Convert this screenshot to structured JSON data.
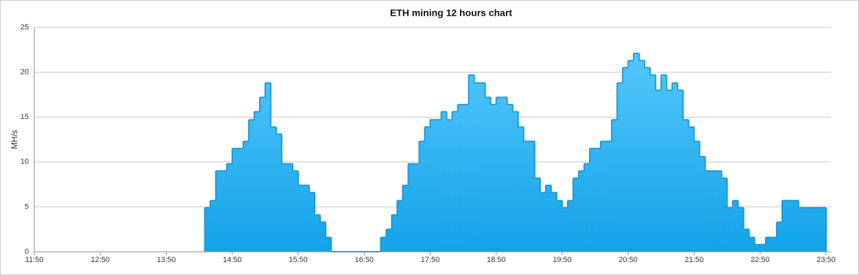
{
  "chart_data": {
    "type": "step-area",
    "title": "ETH mining 12 hours chart",
    "y_label": "MH/s",
    "color": "#1e9ad6",
    "fill_top": "#5ccbff",
    "fill_bottom": "#12a3e8",
    "grid": true,
    "xlim": [
      "11:50",
      "23:50"
    ],
    "xticks": [
      "11:50",
      "12:50",
      "13:50",
      "14:50",
      "15:50",
      "16:50",
      "17:50",
      "18:50",
      "19:50",
      "20:50",
      "21:50",
      "22:50",
      "23:50"
    ],
    "ylim": [
      0,
      25
    ],
    "yticks": [
      0,
      5,
      10,
      15,
      20,
      25
    ],
    "x": [
      "14:25",
      "14:30",
      "14:35",
      "14:40",
      "14:45",
      "14:50",
      "14:55",
      "15:00",
      "15:05",
      "15:10",
      "15:15",
      "15:20",
      "15:25",
      "15:30",
      "15:35",
      "15:40",
      "15:45",
      "15:50",
      "15:55",
      "16:00",
      "16:05",
      "16:10",
      "16:15",
      "16:20",
      "16:25",
      "16:30",
      "16:35",
      "16:40",
      "16:45",
      "16:50",
      "16:55",
      "17:00",
      "17:05",
      "17:10",
      "17:15",
      "17:20",
      "17:25",
      "17:30",
      "17:35",
      "17:40",
      "17:45",
      "17:50",
      "17:55",
      "18:00",
      "18:05",
      "18:10",
      "18:15",
      "18:20",
      "18:25",
      "18:30",
      "18:35",
      "18:40",
      "18:45",
      "18:50",
      "18:55",
      "19:00",
      "19:05",
      "19:10",
      "19:15",
      "19:20",
      "19:25",
      "19:30",
      "19:35",
      "19:40",
      "19:45",
      "19:50",
      "19:55",
      "20:00",
      "20:05",
      "20:10",
      "20:15",
      "20:20",
      "20:25",
      "20:30",
      "20:35",
      "20:40",
      "20:45",
      "20:50",
      "20:55",
      "21:00",
      "21:05",
      "21:10",
      "21:15",
      "21:20",
      "21:25",
      "21:30",
      "21:35",
      "21:40",
      "21:45",
      "21:50",
      "21:55",
      "22:00",
      "22:05",
      "22:10",
      "22:15",
      "22:20",
      "22:25",
      "22:30",
      "22:35",
      "22:40",
      "22:45",
      "22:50",
      "22:55",
      "23:00",
      "23:05",
      "23:10",
      "23:15",
      "23:20",
      "23:25",
      "23:30",
      "23:35",
      "23:40",
      "23:45"
    ],
    "values": [
      4.9,
      5.7,
      9.0,
      9.0,
      9.8,
      11.5,
      11.5,
      12.3,
      14.7,
      15.6,
      17.2,
      18.8,
      13.9,
      13.1,
      9.8,
      9.8,
      9.0,
      7.4,
      7.4,
      6.6,
      4.1,
      3.3,
      1.6,
      0,
      0,
      0,
      0,
      0,
      0,
      0,
      0,
      0,
      1.6,
      2.5,
      4.1,
      5.7,
      7.4,
      9.8,
      9.8,
      12.3,
      13.9,
      14.7,
      14.7,
      15.6,
      14.7,
      15.6,
      16.4,
      16.4,
      19.7,
      18.8,
      18.8,
      17.2,
      16.4,
      17.2,
      17.2,
      16.4,
      15.6,
      13.9,
      12.3,
      12.3,
      8.2,
      6.6,
      7.4,
      6.6,
      5.7,
      4.9,
      5.7,
      8.2,
      9.0,
      9.8,
      11.5,
      11.5,
      12.3,
      12.3,
      14.7,
      18.8,
      20.5,
      21.3,
      22.1,
      21.3,
      20.5,
      19.7,
      18.0,
      19.7,
      18.0,
      18.8,
      18.0,
      14.7,
      13.9,
      12.3,
      10.6,
      9.0,
      9.0,
      9.0,
      8.2,
      4.9,
      5.7,
      4.9,
      2.5,
      1.6,
      0.8,
      0.8,
      1.6,
      1.6,
      3.3,
      5.7,
      5.7,
      5.7,
      4.9,
      4.9,
      4.9,
      4.9,
      4.9
    ]
  }
}
